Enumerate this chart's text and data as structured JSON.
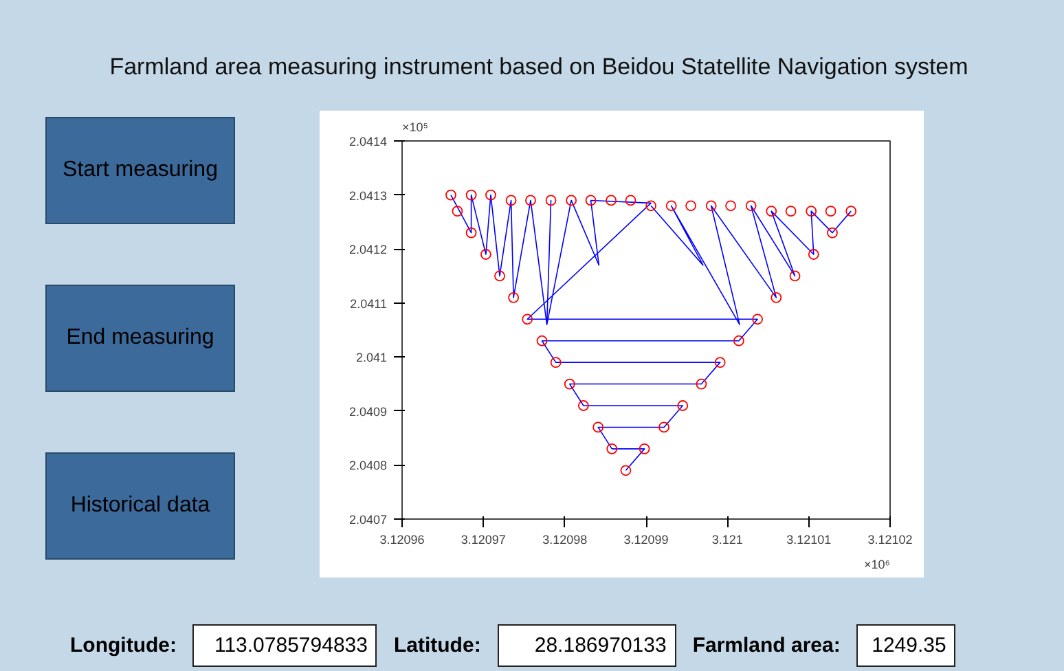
{
  "chart_data": {
    "type": "scatter",
    "title": "Farmland area measuring instrument based on Beidou Statellite Navigation system",
    "xlim": [
      3.12096,
      3.12102
    ],
    "ylim": [
      2.0407,
      2.0414
    ],
    "xticks": [
      3.12096,
      3.12097,
      3.12098,
      3.12099,
      3.121,
      3.12101,
      3.12102
    ],
    "yticks": [
      2.0407,
      2.0408,
      2.0409,
      2.041,
      2.0411,
      2.0412,
      2.0413,
      2.0414
    ],
    "grid": false,
    "series": [
      {
        "marker": "circle",
        "color": "#ff0000",
        "x": [
          3.120966,
          3.1209685,
          3.1209709,
          3.1209734,
          3.1209758,
          3.1209783,
          3.1209808,
          3.1209832,
          3.1209857,
          3.1209881,
          3.1209906,
          3.1209931,
          3.1209955,
          3.120998,
          3.1210004,
          3.1210029,
          3.1210054,
          3.1210078,
          3.1210103,
          3.1210127,
          3.1210152,
          3.1209668,
          3.1209685,
          3.1209703,
          3.120972,
          3.1209737,
          3.1209754,
          3.1209772,
          3.1209789,
          3.1209806,
          3.1209823,
          3.1209841,
          3.1209858,
          3.1209875,
          3.1210129,
          3.1210106,
          3.1210083,
          3.121006,
          3.1210037,
          3.1210014,
          3.1209991,
          3.1209968,
          3.1209945,
          3.1209922,
          3.1209898
        ],
        "values": [
          2.0413,
          2.0413,
          2.0413,
          2.04129,
          2.04129,
          2.04129,
          2.04129,
          2.04129,
          2.04129,
          2.04129,
          2.04128,
          2.04128,
          2.04128,
          2.04128,
          2.04128,
          2.04128,
          2.04127,
          2.04127,
          2.04127,
          2.04127,
          2.04127,
          2.04127,
          2.04123,
          2.04119,
          2.04115,
          2.04111,
          2.04107,
          2.04103,
          2.04099,
          2.04095,
          2.04091,
          2.04087,
          2.04083,
          2.04079,
          2.04123,
          2.04119,
          2.04115,
          2.04111,
          2.04107,
          2.04103,
          2.04099,
          2.04095,
          2.04091,
          2.04087,
          2.04083
        ]
      },
      {
        "type": "line",
        "color": "#0000ff",
        "x": [
          3.120966,
          3.1209685,
          3.1209685,
          3.1209703,
          3.1209709,
          3.120972,
          3.1209734,
          3.1209737,
          3.1209758,
          3.1209778,
          3.1209783,
          3.1209778,
          3.1209808,
          3.1209842,
          3.1209832,
          3.1209906,
          3.1209754,
          3.1210037,
          3.1210014,
          3.1209772,
          3.1209789,
          3.1209991,
          3.1209968,
          3.1209806,
          3.1209823,
          3.1209945,
          3.1209922,
          3.1209841,
          3.1209858,
          3.1209898,
          3.1209875
        ],
        "values": [
          2.0413,
          2.04123,
          2.0413,
          2.04119,
          2.0413,
          2.04115,
          2.04129,
          2.04111,
          2.04129,
          2.04106,
          2.04129,
          2.04106,
          2.04129,
          2.04117,
          2.04129,
          2.041285,
          2.04107,
          2.04107,
          2.04103,
          2.04103,
          2.04099,
          2.04099,
          2.04095,
          2.04095,
          2.04091,
          2.04091,
          2.04087,
          2.04087,
          2.04083,
          2.04083,
          2.04079
        ]
      },
      {
        "type": "line",
        "color": "#0000ff",
        "x": [
          3.1209906,
          3.120997,
          3.1209931,
          3.1210015,
          3.120998,
          3.121006,
          3.1210029,
          3.1210083,
          3.1210054,
          3.1210106,
          3.1210103,
          3.1210129,
          3.1210152
        ],
        "values": [
          2.04128,
          2.04117,
          2.04128,
          2.04106,
          2.04128,
          2.04111,
          2.04128,
          2.04115,
          2.04127,
          2.04119,
          2.04127,
          2.04123,
          2.04127
        ]
      }
    ],
    "annotations": [
      "Start measuring",
      "End measuring",
      "Historical data",
      "Longitude:",
      "113.0785794833",
      "Latitude:",
      "28.186970133",
      "Farmland area:",
      "1249.35",
      "×10⁵",
      "×10⁶"
    ]
  }
}
